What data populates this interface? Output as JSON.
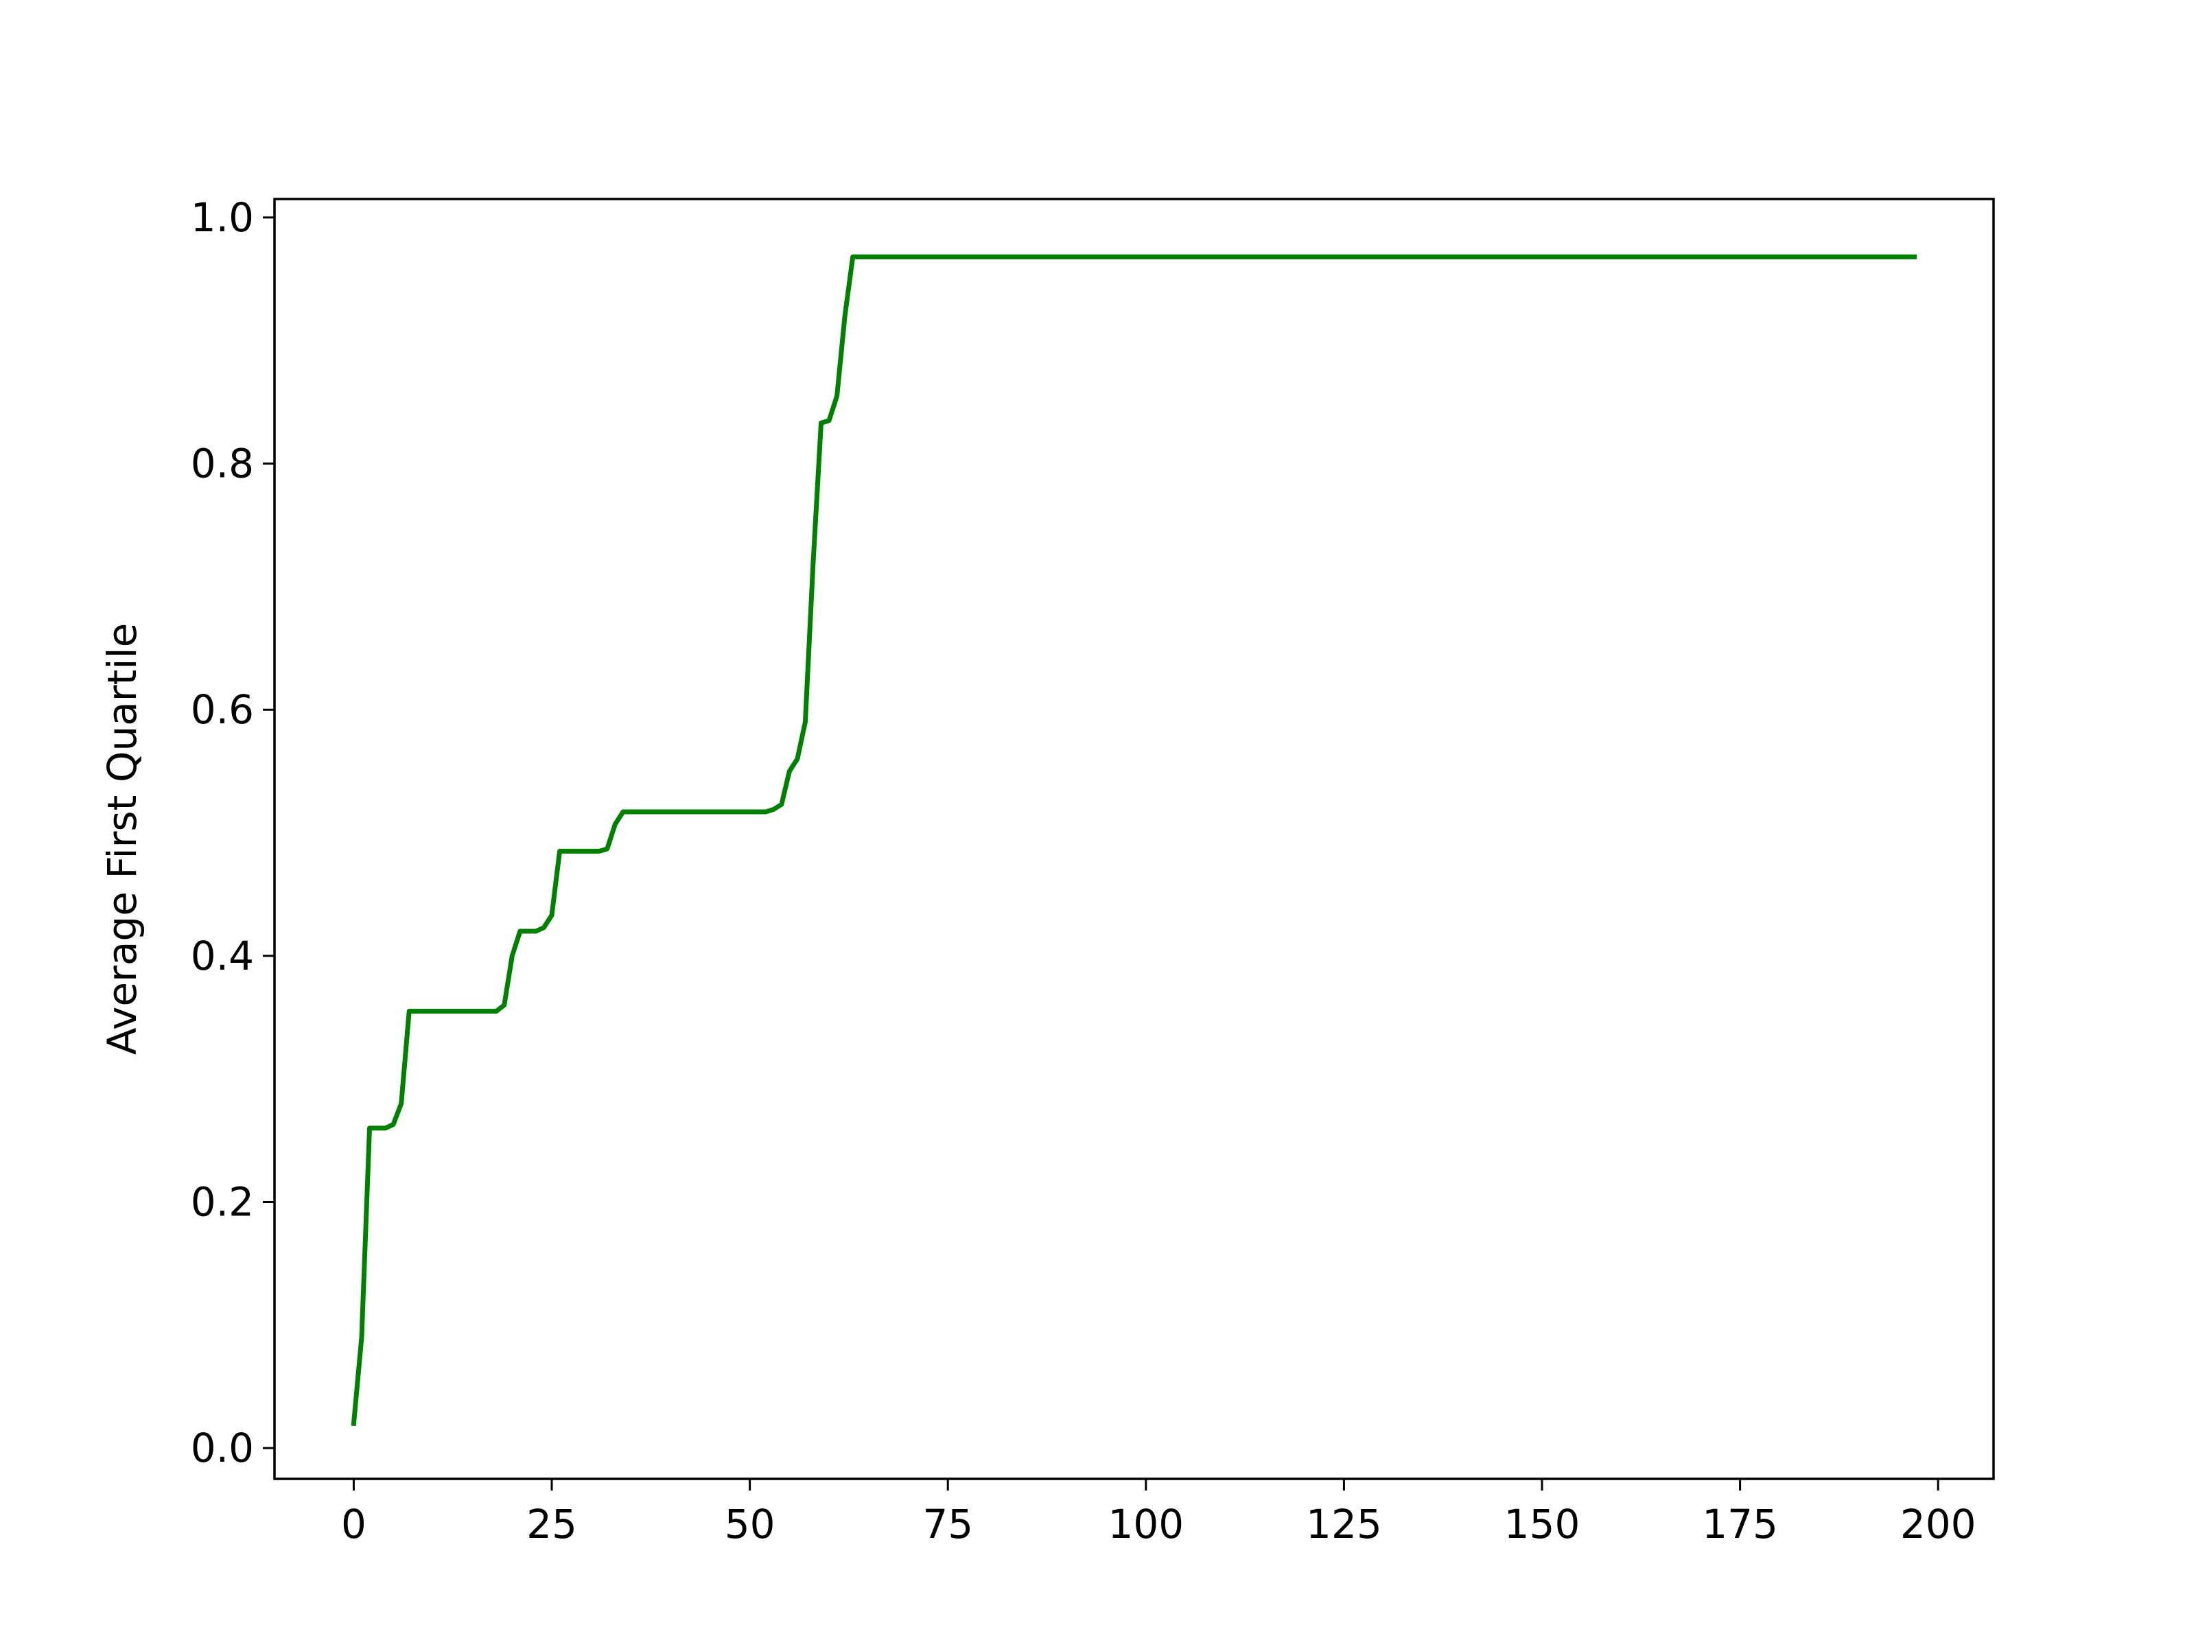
{
  "chart_data": {
    "type": "line",
    "title": "",
    "xlabel": "",
    "ylabel": "Average First Quartile",
    "xlim": [
      -10,
      207
    ],
    "ylim": [
      -0.025,
      1.015
    ],
    "grid": false,
    "x_ticks": [
      0,
      25,
      50,
      75,
      100,
      125,
      150,
      175,
      200
    ],
    "x_tick_labels": [
      "0",
      "25",
      "50",
      "75",
      "100",
      "125",
      "150",
      "175",
      "200"
    ],
    "y_ticks": [
      0.0,
      0.2,
      0.4,
      0.6,
      0.8,
      1.0
    ],
    "y_tick_labels": [
      "0.0",
      "0.2",
      "0.4",
      "0.6",
      "0.8",
      "1.0"
    ],
    "series": [
      {
        "color": "#008000",
        "points": [
          [
            0,
            0.02
          ],
          [
            1,
            0.09
          ],
          [
            2,
            0.26
          ],
          [
            3,
            0.26
          ],
          [
            4,
            0.26
          ],
          [
            5,
            0.263
          ],
          [
            6,
            0.28
          ],
          [
            7,
            0.355
          ],
          [
            8,
            0.355
          ],
          [
            12,
            0.355
          ],
          [
            16,
            0.355
          ],
          [
            18,
            0.355
          ],
          [
            19,
            0.36
          ],
          [
            20,
            0.4
          ],
          [
            21,
            0.42
          ],
          [
            22,
            0.42
          ],
          [
            23,
            0.42
          ],
          [
            24,
            0.423
          ],
          [
            25,
            0.433
          ],
          [
            26,
            0.485
          ],
          [
            27,
            0.485
          ],
          [
            30,
            0.485
          ],
          [
            31,
            0.485
          ],
          [
            32,
            0.487
          ],
          [
            33,
            0.507
          ],
          [
            34,
            0.517
          ],
          [
            35,
            0.517
          ],
          [
            40,
            0.517
          ],
          [
            45,
            0.517
          ],
          [
            50,
            0.517
          ],
          [
            52,
            0.517
          ],
          [
            53,
            0.519
          ],
          [
            54,
            0.523
          ],
          [
            55,
            0.55
          ],
          [
            56,
            0.56
          ],
          [
            57,
            0.59
          ],
          [
            58,
            0.72
          ],
          [
            59,
            0.833
          ],
          [
            60,
            0.835
          ],
          [
            61,
            0.855
          ],
          [
            62,
            0.92
          ],
          [
            63,
            0.968
          ],
          [
            64,
            0.968
          ],
          [
            80,
            0.968
          ],
          [
            100,
            0.968
          ],
          [
            120,
            0.968
          ],
          [
            140,
            0.968
          ],
          [
            160,
            0.968
          ],
          [
            180,
            0.968
          ],
          [
            197,
            0.968
          ]
        ]
      }
    ]
  }
}
